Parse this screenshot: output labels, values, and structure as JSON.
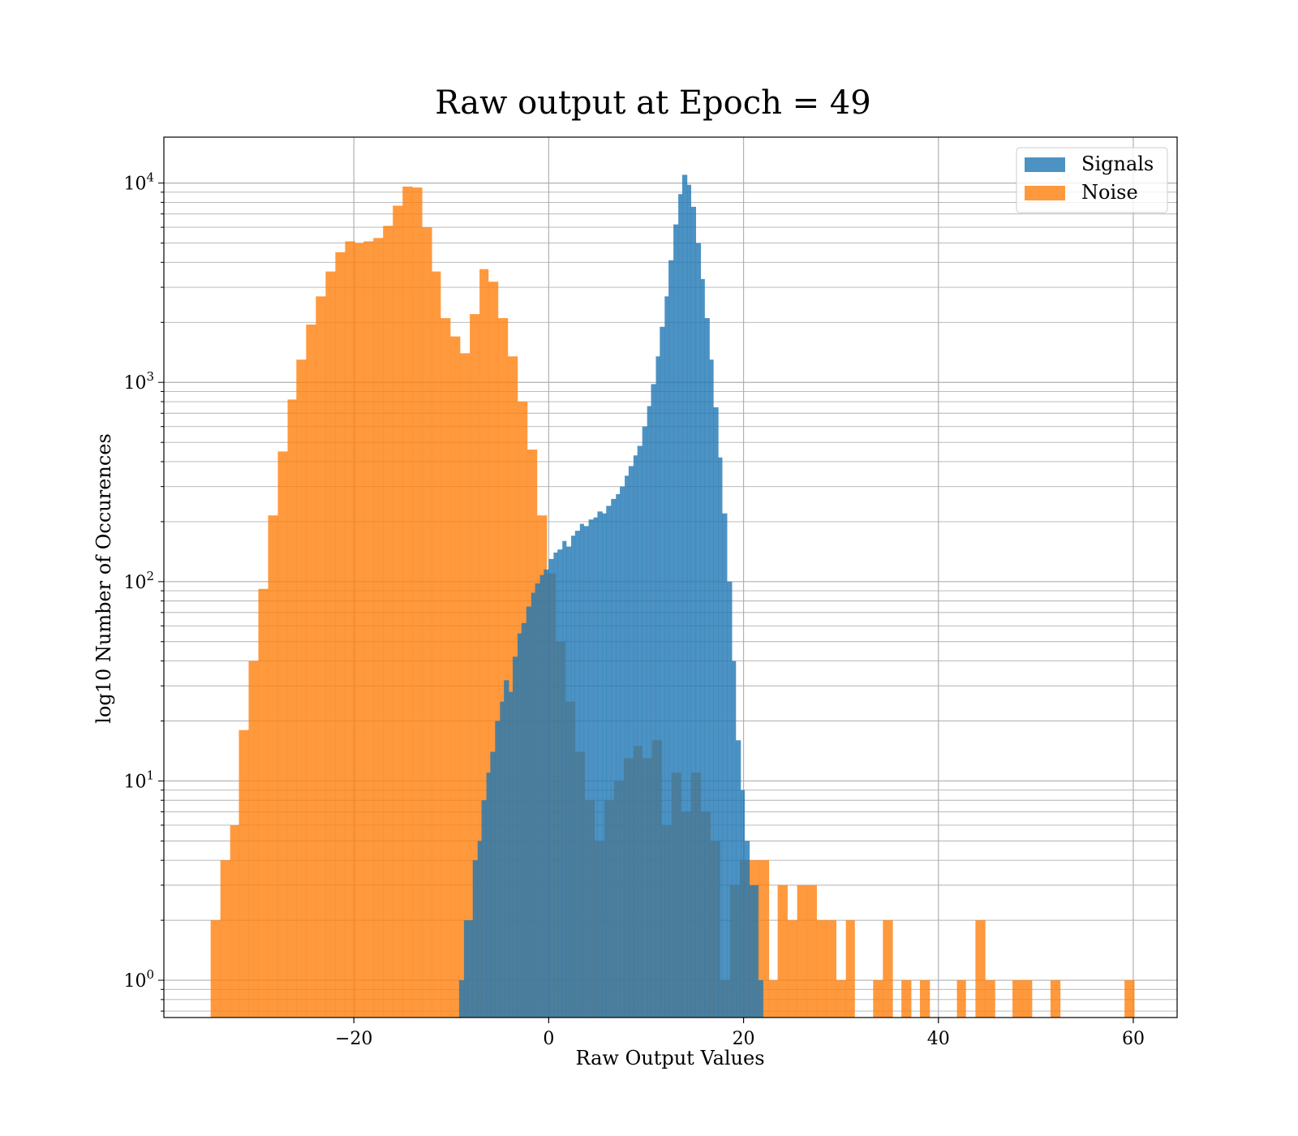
{
  "chart_data": {
    "type": "bar",
    "title": "Raw output at Epoch = 49",
    "xlabel": "Raw Output Values",
    "ylabel": "log10 Number of Occurences",
    "xlim": [
      -39.5,
      64.5
    ],
    "ylim": [
      0.65,
      17000
    ],
    "yscale": "log",
    "grid": true,
    "legend": {
      "position": "top-right",
      "entries": [
        "Signals",
        "Noise"
      ]
    },
    "x_ticks": [
      {
        "value": -20,
        "label": "−20"
      },
      {
        "value": 0,
        "label": "0"
      },
      {
        "value": 20,
        "label": "20"
      },
      {
        "value": 40,
        "label": "40"
      },
      {
        "value": 60,
        "label": "60"
      }
    ],
    "y_ticks": [
      {
        "value": 1,
        "base": "10",
        "exp": "0"
      },
      {
        "value": 10,
        "base": "10",
        "exp": "1"
      },
      {
        "value": 100,
        "base": "10",
        "exp": "2"
      },
      {
        "value": 1000,
        "base": "10",
        "exp": "3"
      },
      {
        "value": 10000,
        "base": "10",
        "exp": "4"
      }
    ],
    "series": [
      {
        "name": "Noise",
        "color": "#ff7f0e",
        "opacity": 0.8,
        "bins": [
          [
            -34.7,
            -33.7,
            2
          ],
          [
            -33.7,
            -32.7,
            4
          ],
          [
            -32.7,
            -31.8,
            6
          ],
          [
            -31.8,
            -30.8,
            18
          ],
          [
            -30.8,
            -29.8,
            40
          ],
          [
            -29.8,
            -28.8,
            92
          ],
          [
            -28.8,
            -27.8,
            215
          ],
          [
            -27.8,
            -26.8,
            450
          ],
          [
            -26.8,
            -25.9,
            820
          ],
          [
            -25.9,
            -24.9,
            1300
          ],
          [
            -24.9,
            -23.9,
            1950
          ],
          [
            -23.9,
            -22.9,
            2700
          ],
          [
            -22.9,
            -21.9,
            3600
          ],
          [
            -21.9,
            -20.9,
            4500
          ],
          [
            -20.9,
            -19.9,
            5100
          ],
          [
            -19.9,
            -19.0,
            5000
          ],
          [
            -19.0,
            -18.0,
            5100
          ],
          [
            -18.0,
            -17.0,
            5300
          ],
          [
            -17.0,
            -16.0,
            6100
          ],
          [
            -16.0,
            -15.0,
            7700
          ],
          [
            -15.0,
            -14.0,
            9600
          ],
          [
            -14.0,
            -13.0,
            9500
          ],
          [
            -13.0,
            -12.0,
            6000
          ],
          [
            -12.0,
            -11.1,
            3600
          ],
          [
            -11.1,
            -10.1,
            2100
          ],
          [
            -10.1,
            -9.1,
            1700
          ],
          [
            -9.1,
            -8.1,
            1400
          ],
          [
            -8.1,
            -7.1,
            2200
          ],
          [
            -7.1,
            -6.2,
            3700
          ],
          [
            -6.2,
            -5.2,
            3200
          ],
          [
            -5.2,
            -4.2,
            2100
          ],
          [
            -4.2,
            -3.2,
            1350
          ],
          [
            -3.2,
            -2.2,
            800
          ],
          [
            -2.2,
            -1.2,
            460
          ],
          [
            -1.2,
            -0.2,
            215
          ],
          [
            -0.2,
            0.7,
            110
          ],
          [
            0.7,
            1.7,
            50
          ],
          [
            1.7,
            2.7,
            25
          ],
          [
            2.7,
            3.7,
            14
          ],
          [
            3.7,
            4.7,
            8
          ],
          [
            4.7,
            5.7,
            5
          ],
          [
            5.7,
            6.7,
            8
          ],
          [
            6.7,
            7.7,
            10
          ],
          [
            7.7,
            8.7,
            13
          ],
          [
            8.7,
            9.6,
            15
          ],
          [
            9.6,
            10.6,
            13
          ],
          [
            10.6,
            11.6,
            16
          ],
          [
            11.6,
            12.6,
            6
          ],
          [
            12.6,
            13.6,
            11
          ],
          [
            13.6,
            14.6,
            7
          ],
          [
            14.6,
            15.6,
            11
          ],
          [
            15.6,
            16.6,
            7
          ],
          [
            16.6,
            17.6,
            5
          ],
          [
            17.6,
            18.6,
            1
          ],
          [
            18.6,
            19.6,
            3
          ],
          [
            19.6,
            20.6,
            4
          ],
          [
            20.6,
            21.6,
            4
          ],
          [
            21.6,
            22.6,
            4
          ],
          [
            22.6,
            23.5,
            1
          ],
          [
            23.5,
            24.5,
            3
          ],
          [
            24.5,
            25.5,
            2
          ],
          [
            25.5,
            26.5,
            3
          ],
          [
            26.5,
            27.5,
            3
          ],
          [
            27.5,
            28.5,
            2
          ],
          [
            28.5,
            29.5,
            2
          ],
          [
            29.5,
            30.5,
            1
          ],
          [
            30.5,
            31.4,
            2
          ],
          [
            33.3,
            34.3,
            1
          ],
          [
            34.3,
            35.3,
            2
          ],
          [
            36.2,
            37.2,
            1
          ],
          [
            38.1,
            39.1,
            1
          ],
          [
            41.9,
            42.8,
            1
          ],
          [
            43.8,
            44.8,
            2
          ],
          [
            44.8,
            45.8,
            1
          ],
          [
            47.6,
            48.6,
            1
          ],
          [
            48.6,
            49.6,
            1
          ],
          [
            51.5,
            52.5,
            1
          ],
          [
            59.1,
            60.1,
            1
          ]
        ]
      },
      {
        "name": "Signals",
        "color": "#1f77b4",
        "opacity": 0.8,
        "bins": [
          [
            -9.2,
            -8.7,
            1
          ],
          [
            -8.7,
            -8.3,
            2
          ],
          [
            -8.3,
            -7.8,
            2
          ],
          [
            -7.8,
            -7.3,
            4
          ],
          [
            -7.3,
            -6.9,
            5
          ],
          [
            -6.9,
            -6.4,
            8
          ],
          [
            -6.4,
            -6.0,
            11
          ],
          [
            -6.0,
            -5.5,
            14
          ],
          [
            -5.5,
            -5.0,
            20
          ],
          [
            -5.0,
            -4.6,
            25
          ],
          [
            -4.6,
            -4.1,
            32
          ],
          [
            -4.1,
            -3.7,
            28
          ],
          [
            -3.7,
            -3.2,
            42
          ],
          [
            -3.2,
            -2.8,
            55
          ],
          [
            -2.8,
            -2.3,
            62
          ],
          [
            -2.3,
            -1.8,
            75
          ],
          [
            -1.8,
            -1.4,
            88
          ],
          [
            -1.4,
            -0.9,
            98
          ],
          [
            -0.9,
            -0.5,
            108
          ],
          [
            -0.5,
            0.0,
            115
          ],
          [
            0.0,
            0.5,
            130
          ],
          [
            0.5,
            0.9,
            140
          ],
          [
            0.9,
            1.4,
            145
          ],
          [
            1.4,
            1.8,
            160
          ],
          [
            1.8,
            2.3,
            150
          ],
          [
            2.3,
            2.7,
            170
          ],
          [
            2.7,
            3.2,
            180
          ],
          [
            3.2,
            3.6,
            195
          ],
          [
            3.6,
            4.1,
            190
          ],
          [
            4.1,
            4.6,
            205
          ],
          [
            4.6,
            5.0,
            210
          ],
          [
            5.0,
            5.5,
            225
          ],
          [
            5.5,
            5.9,
            220
          ],
          [
            5.9,
            6.4,
            240
          ],
          [
            6.4,
            6.9,
            260
          ],
          [
            6.9,
            7.3,
            275
          ],
          [
            7.3,
            7.8,
            300
          ],
          [
            7.8,
            8.2,
            340
          ],
          [
            8.2,
            8.7,
            380
          ],
          [
            8.7,
            9.1,
            430
          ],
          [
            9.1,
            9.6,
            480
          ],
          [
            9.6,
            10.1,
            600
          ],
          [
            10.1,
            10.5,
            760
          ],
          [
            10.5,
            11.0,
            980
          ],
          [
            11.0,
            11.4,
            1350
          ],
          [
            11.4,
            11.9,
            1900
          ],
          [
            11.9,
            12.3,
            2700
          ],
          [
            12.3,
            12.8,
            4100
          ],
          [
            12.8,
            13.3,
            6200
          ],
          [
            13.3,
            13.7,
            8800
          ],
          [
            13.7,
            14.2,
            11000
          ],
          [
            14.2,
            14.6,
            9800
          ],
          [
            14.6,
            15.1,
            7600
          ],
          [
            15.1,
            15.6,
            5000
          ],
          [
            15.6,
            16.0,
            3300
          ],
          [
            16.0,
            16.5,
            2100
          ],
          [
            16.5,
            16.9,
            1300
          ],
          [
            16.9,
            17.4,
            750
          ],
          [
            17.4,
            17.8,
            420
          ],
          [
            17.8,
            18.3,
            220
          ],
          [
            18.3,
            18.8,
            100
          ],
          [
            18.8,
            19.2,
            40
          ],
          [
            19.2,
            19.7,
            16
          ],
          [
            19.7,
            20.1,
            9
          ],
          [
            20.1,
            20.6,
            5
          ],
          [
            20.6,
            21.0,
            3
          ],
          [
            21.0,
            21.5,
            3
          ],
          [
            21.5,
            22.0,
            1
          ]
        ]
      }
    ]
  }
}
